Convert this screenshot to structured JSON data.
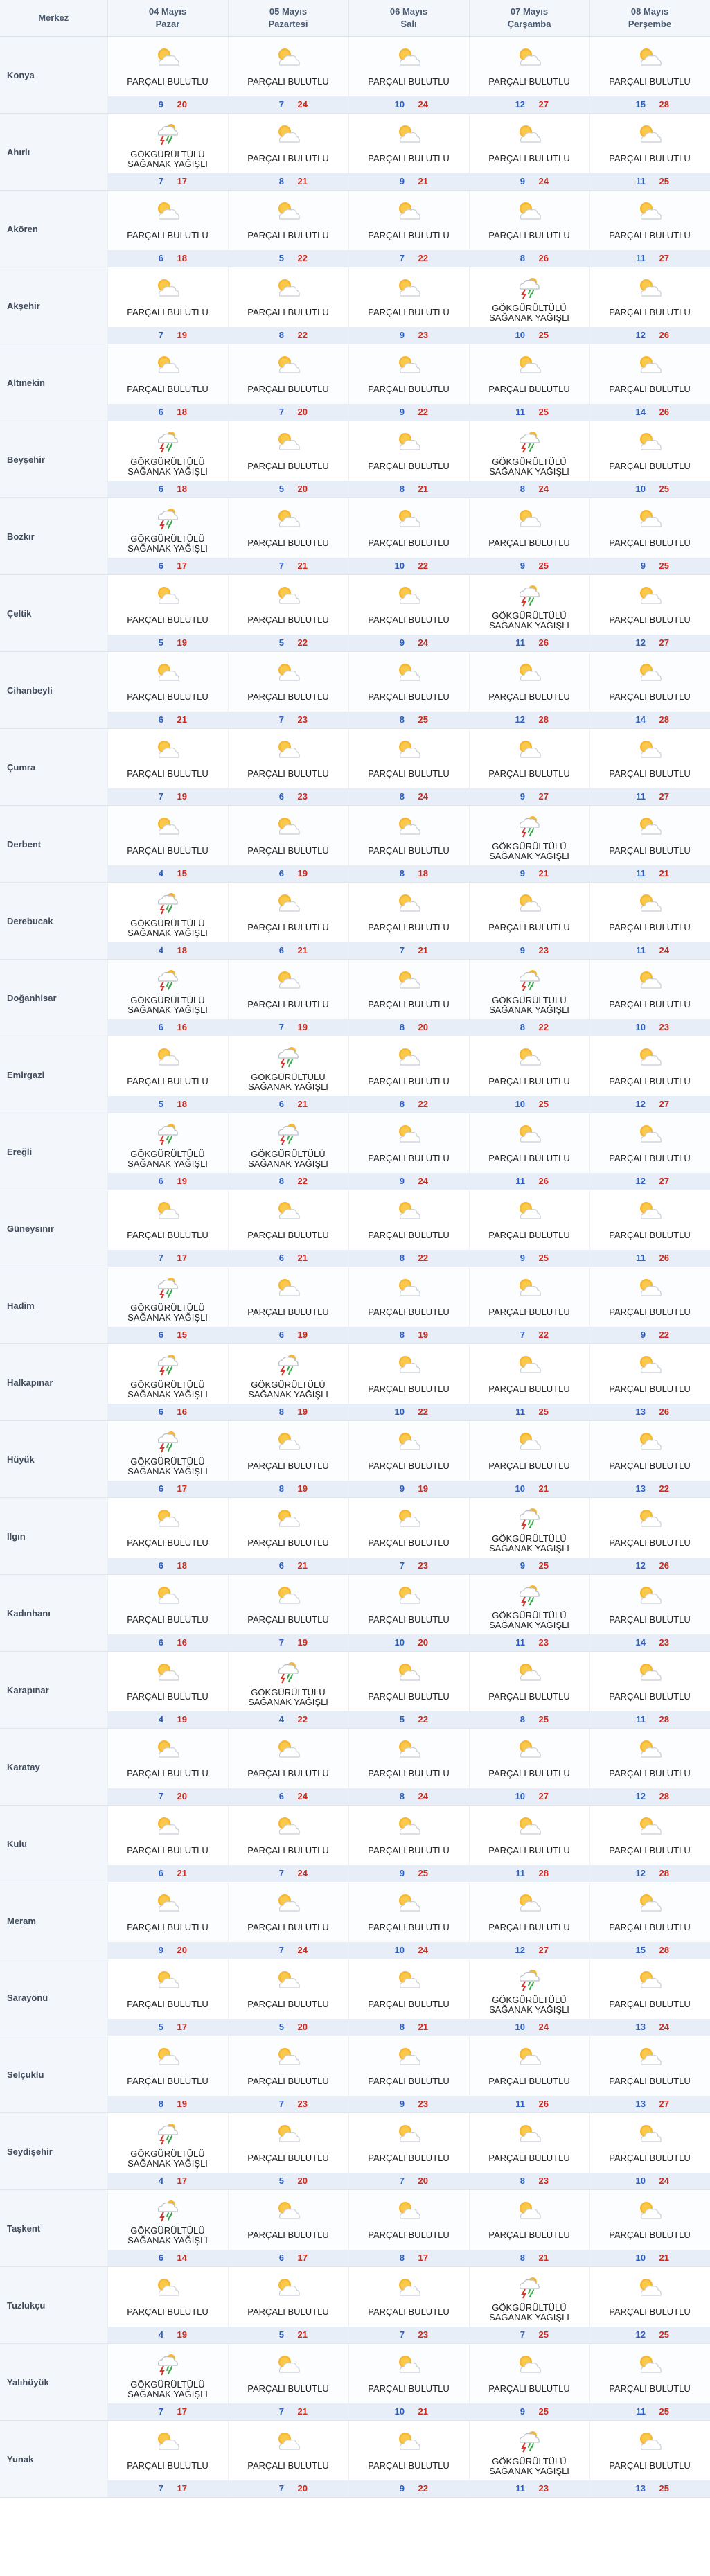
{
  "header": {
    "city_label": "Merkez",
    "days": [
      {
        "date": "04 Mayıs",
        "dayname": "Pazar"
      },
      {
        "date": "05 Mayıs",
        "dayname": "Pazartesi"
      },
      {
        "date": "06 Mayıs",
        "dayname": "Salı"
      },
      {
        "date": "07 Mayıs",
        "dayname": "Çarşamba"
      },
      {
        "date": "08 Mayıs",
        "dayname": "Perşembe"
      }
    ]
  },
  "conditions": {
    "P": {
      "icon": "partly-cloudy-icon",
      "lines": [
        "PARÇALI BULUTLU"
      ]
    },
    "G": {
      "icon": "thunderstorm-icon",
      "lines": [
        "GÖKGÜRÜLTÜLÜ",
        "SAĞANAK YAĞIŞLI"
      ]
    }
  },
  "rows": [
    {
      "name": "Konya",
      "days": [
        [
          "P",
          9,
          20
        ],
        [
          "P",
          7,
          24
        ],
        [
          "P",
          10,
          24
        ],
        [
          "P",
          12,
          27
        ],
        [
          "P",
          15,
          28
        ]
      ]
    },
    {
      "name": "Ahırlı",
      "days": [
        [
          "G",
          7,
          17
        ],
        [
          "P",
          8,
          21
        ],
        [
          "P",
          9,
          21
        ],
        [
          "P",
          9,
          24
        ],
        [
          "P",
          11,
          25
        ]
      ]
    },
    {
      "name": "Akören",
      "days": [
        [
          "P",
          6,
          18
        ],
        [
          "P",
          5,
          22
        ],
        [
          "P",
          7,
          22
        ],
        [
          "P",
          8,
          26
        ],
        [
          "P",
          11,
          27
        ]
      ]
    },
    {
      "name": "Akşehir",
      "days": [
        [
          "P",
          7,
          19
        ],
        [
          "P",
          8,
          22
        ],
        [
          "P",
          9,
          23
        ],
        [
          "G",
          10,
          25
        ],
        [
          "P",
          12,
          26
        ]
      ]
    },
    {
      "name": "Altınekin",
      "days": [
        [
          "P",
          6,
          18
        ],
        [
          "P",
          7,
          20
        ],
        [
          "P",
          9,
          22
        ],
        [
          "P",
          11,
          25
        ],
        [
          "P",
          14,
          26
        ]
      ]
    },
    {
      "name": "Beyşehir",
      "days": [
        [
          "G",
          6,
          18
        ],
        [
          "P",
          5,
          20
        ],
        [
          "P",
          8,
          21
        ],
        [
          "G",
          8,
          24
        ],
        [
          "P",
          10,
          25
        ]
      ]
    },
    {
      "name": "Bozkır",
      "days": [
        [
          "G",
          6,
          17
        ],
        [
          "P",
          7,
          21
        ],
        [
          "P",
          10,
          22
        ],
        [
          "P",
          9,
          25
        ],
        [
          "P",
          9,
          25
        ]
      ]
    },
    {
      "name": "Çeltik",
      "days": [
        [
          "P",
          5,
          19
        ],
        [
          "P",
          5,
          22
        ],
        [
          "P",
          9,
          24
        ],
        [
          "G",
          11,
          26
        ],
        [
          "P",
          12,
          27
        ]
      ]
    },
    {
      "name": "Cihanbeyli",
      "days": [
        [
          "P",
          6,
          21
        ],
        [
          "P",
          7,
          23
        ],
        [
          "P",
          8,
          25
        ],
        [
          "P",
          12,
          28
        ],
        [
          "P",
          14,
          28
        ]
      ]
    },
    {
      "name": "Çumra",
      "days": [
        [
          "P",
          7,
          19
        ],
        [
          "P",
          6,
          23
        ],
        [
          "P",
          8,
          24
        ],
        [
          "P",
          9,
          27
        ],
        [
          "P",
          11,
          27
        ]
      ]
    },
    {
      "name": "Derbent",
      "days": [
        [
          "P",
          4,
          15
        ],
        [
          "P",
          6,
          19
        ],
        [
          "P",
          8,
          18
        ],
        [
          "G",
          9,
          21
        ],
        [
          "P",
          11,
          21
        ]
      ]
    },
    {
      "name": "Derebucak",
      "days": [
        [
          "G",
          4,
          18
        ],
        [
          "P",
          6,
          21
        ],
        [
          "P",
          7,
          21
        ],
        [
          "P",
          9,
          23
        ],
        [
          "P",
          11,
          24
        ]
      ]
    },
    {
      "name": "Doğanhisar",
      "days": [
        [
          "G",
          6,
          16
        ],
        [
          "P",
          7,
          19
        ],
        [
          "P",
          8,
          20
        ],
        [
          "G",
          8,
          22
        ],
        [
          "P",
          10,
          23
        ]
      ]
    },
    {
      "name": "Emirgazi",
      "days": [
        [
          "P",
          5,
          18
        ],
        [
          "G",
          6,
          21
        ],
        [
          "P",
          8,
          22
        ],
        [
          "P",
          10,
          25
        ],
        [
          "P",
          12,
          27
        ]
      ]
    },
    {
      "name": "Ereğli",
      "days": [
        [
          "G",
          6,
          19
        ],
        [
          "G",
          8,
          22
        ],
        [
          "P",
          9,
          24
        ],
        [
          "P",
          11,
          26
        ],
        [
          "P",
          12,
          27
        ]
      ]
    },
    {
      "name": "Güneysınır",
      "days": [
        [
          "P",
          7,
          17
        ],
        [
          "P",
          6,
          21
        ],
        [
          "P",
          8,
          22
        ],
        [
          "P",
          9,
          25
        ],
        [
          "P",
          11,
          26
        ]
      ]
    },
    {
      "name": "Hadim",
      "days": [
        [
          "G",
          6,
          15
        ],
        [
          "P",
          6,
          19
        ],
        [
          "P",
          8,
          19
        ],
        [
          "P",
          7,
          22
        ],
        [
          "P",
          9,
          22
        ]
      ]
    },
    {
      "name": "Halkapınar",
      "days": [
        [
          "G",
          6,
          16
        ],
        [
          "G",
          8,
          19
        ],
        [
          "P",
          10,
          22
        ],
        [
          "P",
          11,
          25
        ],
        [
          "P",
          13,
          26
        ]
      ]
    },
    {
      "name": "Hüyük",
      "days": [
        [
          "G",
          6,
          17
        ],
        [
          "P",
          8,
          19
        ],
        [
          "P",
          9,
          19
        ],
        [
          "P",
          10,
          21
        ],
        [
          "P",
          13,
          22
        ]
      ]
    },
    {
      "name": "Ilgın",
      "days": [
        [
          "P",
          6,
          18
        ],
        [
          "P",
          6,
          21
        ],
        [
          "P",
          7,
          23
        ],
        [
          "G",
          9,
          25
        ],
        [
          "P",
          12,
          26
        ]
      ]
    },
    {
      "name": "Kadınhanı",
      "days": [
        [
          "P",
          6,
          16
        ],
        [
          "P",
          7,
          19
        ],
        [
          "P",
          10,
          20
        ],
        [
          "G",
          11,
          23
        ],
        [
          "P",
          14,
          23
        ]
      ]
    },
    {
      "name": "Karapınar",
      "days": [
        [
          "P",
          4,
          19
        ],
        [
          "G",
          4,
          22
        ],
        [
          "P",
          5,
          22
        ],
        [
          "P",
          8,
          25
        ],
        [
          "P",
          11,
          28
        ]
      ]
    },
    {
      "name": "Karatay",
      "days": [
        [
          "P",
          7,
          20
        ],
        [
          "P",
          6,
          24
        ],
        [
          "P",
          8,
          24
        ],
        [
          "P",
          10,
          27
        ],
        [
          "P",
          12,
          28
        ]
      ]
    },
    {
      "name": "Kulu",
      "days": [
        [
          "P",
          6,
          21
        ],
        [
          "P",
          7,
          24
        ],
        [
          "P",
          9,
          25
        ],
        [
          "P",
          11,
          28
        ],
        [
          "P",
          12,
          28
        ]
      ]
    },
    {
      "name": "Meram",
      "days": [
        [
          "P",
          9,
          20
        ],
        [
          "P",
          7,
          24
        ],
        [
          "P",
          10,
          24
        ],
        [
          "P",
          12,
          27
        ],
        [
          "P",
          15,
          28
        ]
      ]
    },
    {
      "name": "Sarayönü",
      "days": [
        [
          "P",
          5,
          17
        ],
        [
          "P",
          5,
          20
        ],
        [
          "P",
          8,
          21
        ],
        [
          "G",
          10,
          24
        ],
        [
          "P",
          13,
          24
        ]
      ]
    },
    {
      "name": "Selçuklu",
      "days": [
        [
          "P",
          8,
          19
        ],
        [
          "P",
          7,
          23
        ],
        [
          "P",
          9,
          23
        ],
        [
          "P",
          11,
          26
        ],
        [
          "P",
          13,
          27
        ]
      ]
    },
    {
      "name": "Seydişehir",
      "days": [
        [
          "G",
          4,
          17
        ],
        [
          "P",
          5,
          20
        ],
        [
          "P",
          7,
          20
        ],
        [
          "P",
          8,
          23
        ],
        [
          "P",
          10,
          24
        ]
      ]
    },
    {
      "name": "Taşkent",
      "days": [
        [
          "G",
          6,
          14
        ],
        [
          "P",
          6,
          17
        ],
        [
          "P",
          8,
          17
        ],
        [
          "P",
          8,
          21
        ],
        [
          "P",
          10,
          21
        ]
      ]
    },
    {
      "name": "Tuzlukçu",
      "days": [
        [
          "P",
          4,
          19
        ],
        [
          "P",
          5,
          21
        ],
        [
          "P",
          7,
          23
        ],
        [
          "G",
          7,
          25
        ],
        [
          "P",
          12,
          25
        ]
      ]
    },
    {
      "name": "Yalıhüyük",
      "days": [
        [
          "G",
          7,
          17
        ],
        [
          "P",
          7,
          21
        ],
        [
          "P",
          10,
          21
        ],
        [
          "P",
          9,
          25
        ],
        [
          "P",
          11,
          25
        ]
      ]
    },
    {
      "name": "Yunak",
      "days": [
        [
          "P",
          7,
          17
        ],
        [
          "P",
          7,
          20
        ],
        [
          "P",
          9,
          22
        ],
        [
          "G",
          11,
          23
        ],
        [
          "P",
          13,
          25
        ]
      ]
    }
  ]
}
